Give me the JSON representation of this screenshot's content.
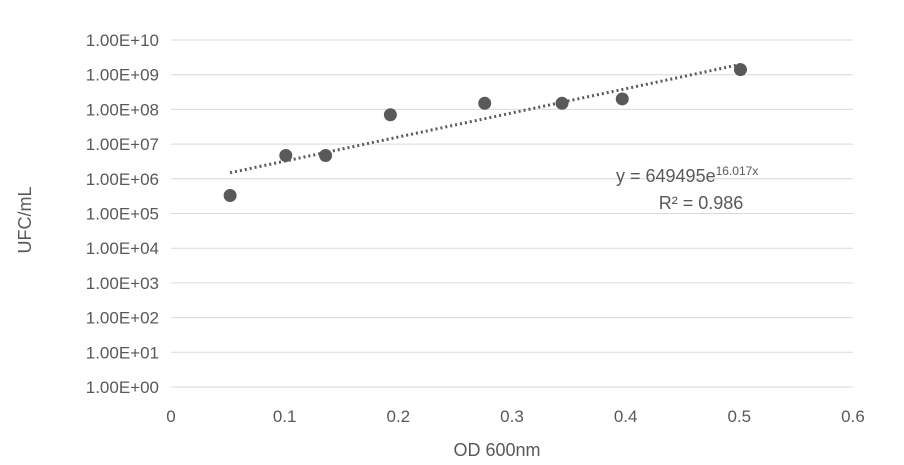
{
  "chart_data": {
    "type": "scatter",
    "xlabel": "OD 600nm",
    "ylabel": "UFC/mL",
    "xlim": [
      0,
      0.6
    ],
    "x_ticks": [
      0,
      0.1,
      0.2,
      0.3,
      0.4,
      0.5,
      0.6
    ],
    "x_tick_labels": [
      "0",
      "0.1",
      "0.2",
      "0.3",
      "0.4",
      "0.5",
      "0.6"
    ],
    "ylim": [
      1,
      10000000000
    ],
    "y_scale": "log",
    "y_ticks": [
      1,
      10,
      100,
      1000,
      10000,
      100000,
      1000000,
      10000000,
      100000000,
      1000000000,
      10000000000
    ],
    "y_tick_labels": [
      "1.00E+00",
      "1.00E+01",
      "1.00E+02",
      "1.00E+03",
      "1.00E+04",
      "1.00E+05",
      "1.00E+06",
      "1.00E+07",
      "1.00E+08",
      "1.00E+09",
      "1.00E+10"
    ],
    "grid": "horizontal",
    "marker_color": "#595959",
    "series": [
      {
        "x": [
          0.052,
          0.101,
          0.136,
          0.193,
          0.276,
          0.344,
          0.397,
          0.501
        ],
        "y": [
          330000,
          4700000,
          4700000,
          70000000,
          150000000,
          150000000,
          200000000,
          1400000000
        ]
      }
    ],
    "trendline": {
      "type": "exponential",
      "a": 649495,
      "b": 16.017,
      "x_range": [
        0.052,
        0.501
      ],
      "style": "dotted",
      "equation_prefix": "y = 649495e",
      "equation_exponent": "16.017x",
      "r2_label": "R² = 0.986"
    }
  }
}
